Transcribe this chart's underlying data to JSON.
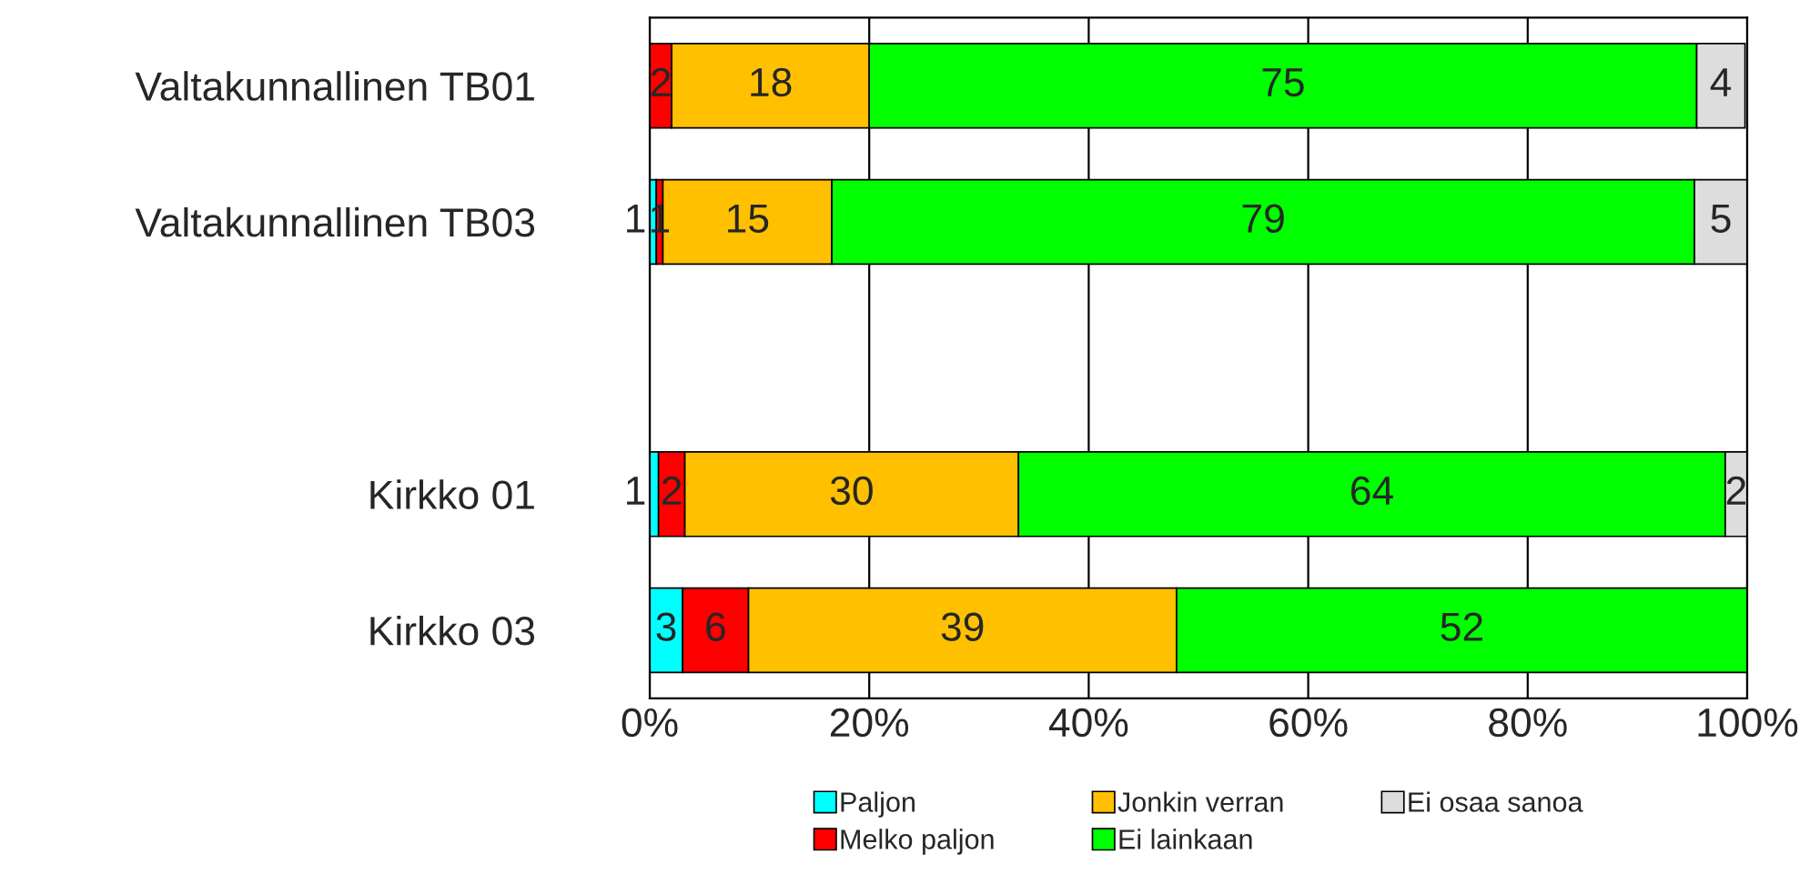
{
  "chart_data": {
    "type": "bar",
    "orientation": "horizontal",
    "stacked": true,
    "categories": [
      "Valtakunnallinen TB01",
      "Valtakunnallinen TB03",
      null,
      "Kirkko 01",
      "Kirkko 03"
    ],
    "series": [
      {
        "name": "Paljon",
        "color": "#00ffff",
        "values": [
          0,
          0.6,
          null,
          0.8,
          3
        ],
        "value_labels": [
          null,
          "1",
          null,
          "1",
          "3"
        ]
      },
      {
        "name": "Melko paljon",
        "color": "#ff0000",
        "values": [
          2,
          0.6,
          null,
          2.4,
          6
        ],
        "value_labels": [
          "2",
          "1",
          null,
          "2",
          "6"
        ]
      },
      {
        "name": "Jonkin verran",
        "color": "#ffc000",
        "values": [
          18,
          15.4,
          null,
          30.4,
          39
        ],
        "value_labels": [
          "18",
          "15",
          null,
          "30",
          "39"
        ]
      },
      {
        "name": "Ei lainkaan",
        "color": "#00ff00",
        "values": [
          75.4,
          78.6,
          null,
          64.4,
          52
        ],
        "value_labels": [
          "75",
          "79",
          null,
          "64",
          "52"
        ]
      },
      {
        "name": "Ei osaa sanoa",
        "color": "#dddddd",
        "values": [
          4.4,
          4.8,
          null,
          2.0,
          0
        ],
        "value_labels": [
          "4",
          "5",
          null,
          "2",
          null
        ]
      }
    ],
    "xlim": [
      0,
      100
    ],
    "xticks": [
      {
        "value": 0,
        "label": "0%"
      },
      {
        "value": 20,
        "label": "20%"
      },
      {
        "value": 40,
        "label": "40%"
      },
      {
        "value": 60,
        "label": "60%"
      },
      {
        "value": 80,
        "label": "80%"
      },
      {
        "value": 100,
        "label": "100%"
      }
    ],
    "grid": "x",
    "legend": "bottom"
  }
}
